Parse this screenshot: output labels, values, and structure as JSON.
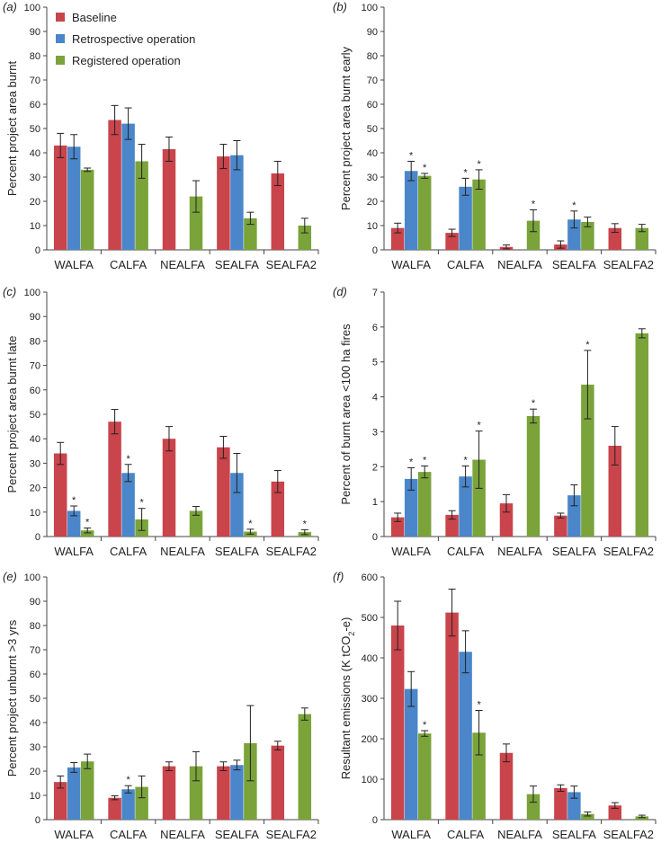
{
  "colors": {
    "Baseline": "#c9444b",
    "Retrospective operation": "#4a86c9",
    "Registered operation": "#7aa33a"
  },
  "legend": {
    "items": [
      "Baseline",
      "Retrospective operation",
      "Registered operation"
    ],
    "placement": "top-left of panel (a)"
  },
  "chart_data": [
    {
      "panel": "(a)",
      "type": "bar",
      "ylabel": "Percent project area burnt",
      "ylim": [
        0,
        100
      ],
      "yticks": [
        0,
        10,
        20,
        30,
        40,
        50,
        60,
        70,
        80,
        90,
        100
      ],
      "categories": [
        "WALFA",
        "CALFA",
        "NEALFA",
        "SEALFA",
        "SEALFA2"
      ],
      "series": [
        {
          "name": "Baseline",
          "values": [
            43,
            53.5,
            41.5,
            38.5,
            31.5
          ],
          "err": [
            5,
            6,
            5,
            5,
            5
          ],
          "sig": [
            false,
            false,
            false,
            false,
            false
          ]
        },
        {
          "name": "Retrospective operation",
          "values": [
            42.5,
            52,
            null,
            39,
            null
          ],
          "err": [
            5,
            6.5,
            null,
            6,
            null
          ],
          "sig": [
            false,
            false,
            false,
            false,
            false
          ]
        },
        {
          "name": "Registered operation",
          "values": [
            33,
            36.5,
            22,
            13,
            10
          ],
          "err": [
            0.7,
            7,
            6.5,
            2.5,
            3
          ],
          "sig": [
            false,
            false,
            false,
            false,
            false
          ]
        }
      ]
    },
    {
      "panel": "(b)",
      "type": "bar",
      "ylabel": "Percent project area burnt early",
      "ylim": [
        0,
        100
      ],
      "yticks": [
        0,
        10,
        20,
        30,
        40,
        50,
        60,
        70,
        80,
        90,
        100
      ],
      "categories": [
        "WALFA",
        "CALFA",
        "NEALFA",
        "SEALFA",
        "SEALFA2"
      ],
      "series": [
        {
          "name": "Baseline",
          "values": [
            9,
            7,
            1.2,
            2.2,
            9
          ],
          "err": [
            2,
            1.5,
            0.8,
            1.5,
            1.8
          ],
          "sig": [
            false,
            false,
            false,
            false,
            false
          ]
        },
        {
          "name": "Retrospective operation",
          "values": [
            32.5,
            26,
            null,
            12.5,
            null
          ],
          "err": [
            4,
            3.5,
            null,
            3.5,
            null
          ],
          "sig": [
            true,
            true,
            false,
            true,
            false
          ]
        },
        {
          "name": "Registered operation",
          "values": [
            30.5,
            29,
            12,
            11.5,
            9
          ],
          "err": [
            1,
            4,
            4.5,
            2,
            1.5
          ],
          "sig": [
            true,
            true,
            true,
            false,
            false
          ]
        }
      ]
    },
    {
      "panel": "(c)",
      "type": "bar",
      "ylabel": "Percent project area burnt late",
      "ylim": [
        0,
        100
      ],
      "yticks": [
        0,
        10,
        20,
        30,
        40,
        50,
        60,
        70,
        80,
        90,
        100
      ],
      "categories": [
        "WALFA",
        "CALFA",
        "NEALFA",
        "SEALFA",
        "SEALFA2"
      ],
      "series": [
        {
          "name": "Baseline",
          "values": [
            34,
            47,
            40,
            36.5,
            22.5
          ],
          "err": [
            4.5,
            5,
            5,
            4.5,
            4.5
          ],
          "sig": [
            false,
            false,
            false,
            false,
            false
          ]
        },
        {
          "name": "Retrospective operation",
          "values": [
            10.5,
            26,
            null,
            26,
            null
          ],
          "err": [
            2,
            3.5,
            null,
            8,
            null
          ],
          "sig": [
            true,
            true,
            false,
            false,
            false
          ]
        },
        {
          "name": "Registered operation",
          "values": [
            2.5,
            7,
            10.5,
            2,
            1.8
          ],
          "err": [
            1,
            4.5,
            1.8,
            1,
            1
          ],
          "sig": [
            true,
            true,
            false,
            true,
            true
          ]
        }
      ]
    },
    {
      "panel": "(d)",
      "type": "bar",
      "ylabel": "Percent of burnt area <100 ha fires",
      "ylim": [
        0,
        7
      ],
      "yticks": [
        0,
        1,
        2,
        3,
        4,
        5,
        6,
        7
      ],
      "categories": [
        "WALFA",
        "CALFA",
        "NEALFA",
        "SEALFA",
        "SEALFA2"
      ],
      "series": [
        {
          "name": "Baseline",
          "values": [
            0.55,
            0.62,
            0.95,
            0.6,
            2.6
          ],
          "err": [
            0.12,
            0.12,
            0.25,
            0.07,
            0.55
          ],
          "sig": [
            false,
            false,
            false,
            false,
            false
          ]
        },
        {
          "name": "Retrospective operation",
          "values": [
            1.65,
            1.72,
            null,
            1.18,
            null
          ],
          "err": [
            0.32,
            0.3,
            null,
            0.3,
            null
          ],
          "sig": [
            true,
            true,
            false,
            false,
            false
          ]
        },
        {
          "name": "Registered operation",
          "values": [
            1.85,
            2.2,
            3.45,
            4.35,
            5.82
          ],
          "err": [
            0.17,
            0.82,
            0.2,
            0.98,
            0.13
          ],
          "sig": [
            true,
            true,
            true,
            true,
            false
          ]
        }
      ]
    },
    {
      "panel": "(e)",
      "type": "bar",
      "ylabel": "Percent project unburnt >3 yrs",
      "ylim": [
        0,
        100
      ],
      "yticks": [
        0,
        10,
        20,
        30,
        40,
        50,
        60,
        70,
        80,
        90,
        100
      ],
      "categories": [
        "WALFA",
        "CALFA",
        "NEALFA",
        "SEALFA",
        "SEALFA2"
      ],
      "series": [
        {
          "name": "Baseline",
          "values": [
            15.5,
            9,
            22,
            22,
            30.5
          ],
          "err": [
            2.5,
            0.8,
            1.8,
            1.8,
            1.8
          ],
          "sig": [
            false,
            false,
            false,
            false,
            false
          ]
        },
        {
          "name": "Retrospective operation",
          "values": [
            21.5,
            12.5,
            null,
            22.5,
            null
          ],
          "err": [
            2,
            1.5,
            null,
            2,
            null
          ],
          "sig": [
            false,
            true,
            false,
            false,
            false
          ]
        },
        {
          "name": "Registered operation",
          "values": [
            24,
            13.5,
            22,
            31.5,
            43.5
          ],
          "err": [
            3,
            4.5,
            6,
            15.5,
            2.5
          ],
          "sig": [
            false,
            false,
            false,
            false,
            false
          ]
        }
      ]
    },
    {
      "panel": "(f)",
      "type": "bar",
      "ylabel_main": "Resultant emissions (K tCO",
      "ylabel_sub": "2",
      "ylabel_end": "-e)",
      "ylim": [
        0,
        600
      ],
      "yticks": [
        0,
        100,
        200,
        300,
        400,
        500,
        600
      ],
      "categories": [
        "WALFA",
        "CALFA",
        "NEALFA",
        "SEALFA",
        "SEALFA2"
      ],
      "series": [
        {
          "name": "Baseline",
          "values": [
            480,
            512,
            165,
            78,
            35
          ],
          "err": [
            60,
            58,
            22,
            8,
            7
          ],
          "sig": [
            false,
            false,
            false,
            false,
            false
          ]
        },
        {
          "name": "Retrospective operation",
          "values": [
            323,
            415,
            null,
            68,
            null
          ],
          "err": [
            43,
            52,
            null,
            15,
            null
          ],
          "sig": [
            false,
            false,
            false,
            false,
            false
          ]
        },
        {
          "name": "Registered operation",
          "values": [
            213,
            215,
            63,
            14,
            8
          ],
          "err": [
            7,
            55,
            20,
            5,
            3
          ],
          "sig": [
            true,
            true,
            false,
            false,
            false
          ]
        }
      ]
    }
  ]
}
